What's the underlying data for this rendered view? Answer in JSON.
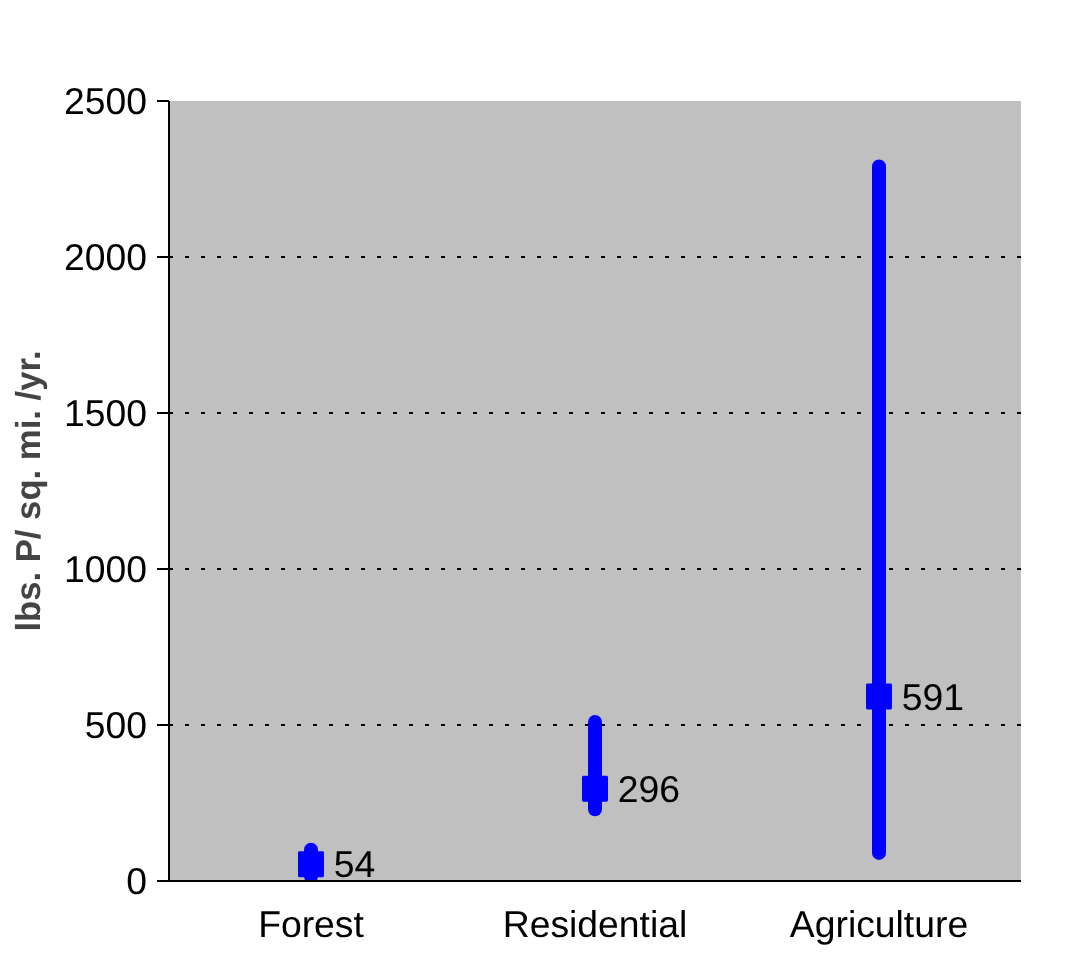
{
  "chart_data": {
    "type": "scatter",
    "ylabel": "lbs. P/ sq. mi. /yr.",
    "categories": [
      "Forest",
      "Residential",
      "Agriculture"
    ],
    "values": [
      54,
      296,
      591
    ],
    "errors": [
      [
        15,
        100
      ],
      [
        230,
        510
      ],
      [
        90,
        2290
      ]
    ],
    "color": "#0000ff",
    "marker": "square",
    "data_labels": true,
    "ylim": [
      0,
      2500
    ],
    "yticks": [
      0,
      500,
      1000,
      1500,
      2000,
      2500
    ],
    "grid": "y"
  }
}
